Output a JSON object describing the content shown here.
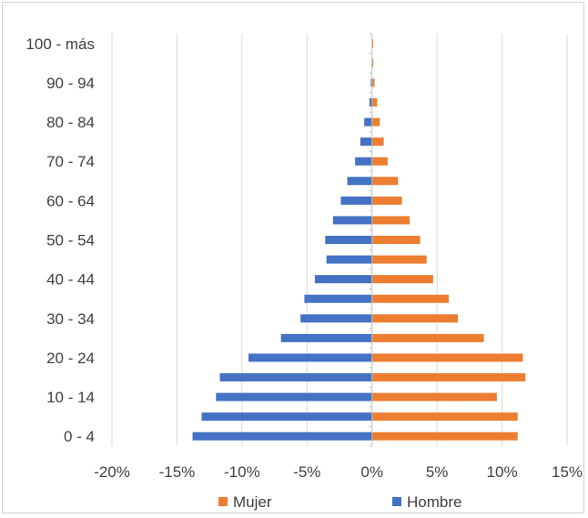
{
  "chart_data": {
    "type": "bar",
    "orientation": "horizontal",
    "subtype": "population-pyramid",
    "categories": [
      "0 - 4",
      "5 - 9",
      "10 - 14",
      "15 - 19",
      "20 - 24",
      "25 - 29",
      "30 - 34",
      "35 - 39",
      "40 - 44",
      "45 - 49",
      "50 - 54",
      "55 - 59",
      "60 - 64",
      "65 - 69",
      "70 - 74",
      "75 - 79",
      "80 - 84",
      "85 - 89",
      "90 - 94",
      "95 - 99",
      "100 - más"
    ],
    "category_tick_labels": [
      "0 - 4",
      "10 - 14",
      "20 - 24",
      "30 - 34",
      "40 - 44",
      "50 - 54",
      "60 - 64",
      "70 - 74",
      "80 - 84",
      "90 - 94",
      "100 - más"
    ],
    "series": [
      {
        "name": "Mujer",
        "color": "#ED7D31",
        "values": [
          11.2,
          11.2,
          9.6,
          11.8,
          11.6,
          8.6,
          6.6,
          5.9,
          4.7,
          4.2,
          3.7,
          2.9,
          2.3,
          2.0,
          1.2,
          0.9,
          0.6,
          0.4,
          0.2,
          0.1,
          0.1
        ]
      },
      {
        "name": "Hombre",
        "color": "#4472C4",
        "values": [
          -13.8,
          -13.1,
          -12.0,
          -11.7,
          -9.5,
          -7.0,
          -5.5,
          -5.2,
          -4.4,
          -3.5,
          -3.6,
          -3.0,
          -2.4,
          -1.9,
          -1.3,
          -0.9,
          -0.6,
          -0.2,
          -0.1,
          0.0,
          0.0
        ]
      }
    ],
    "xlim": [
      -20,
      15
    ],
    "x_ticks": [
      -20,
      -15,
      -10,
      -5,
      0,
      5,
      10,
      15
    ],
    "x_tick_labels": [
      "-20%",
      "-15%",
      "-10%",
      "-5%",
      "0%",
      "5%",
      "10%",
      "15%"
    ],
    "grid": "vertical",
    "legend_position": "bottom"
  }
}
